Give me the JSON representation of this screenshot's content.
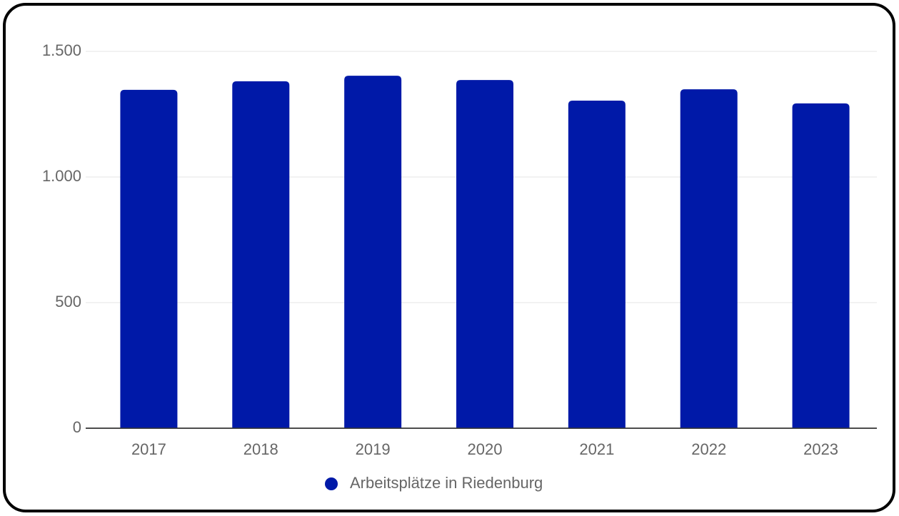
{
  "chart_data": {
    "type": "bar",
    "categories": [
      "2017",
      "2018",
      "2019",
      "2020",
      "2021",
      "2022",
      "2023"
    ],
    "series": [
      {
        "name": "Arbeitsplätze in Riedenburg",
        "color": "#0019a8",
        "values": [
          1347,
          1381,
          1403,
          1386,
          1304,
          1349,
          1293
        ]
      }
    ],
    "ylim": [
      0,
      1500
    ],
    "yticks": [
      0,
      500,
      {
        "value": 1000,
        "label": "1.000"
      },
      {
        "value": 1500,
        "label": "1.500"
      }
    ],
    "grid": true,
    "legend": "bottom"
  }
}
